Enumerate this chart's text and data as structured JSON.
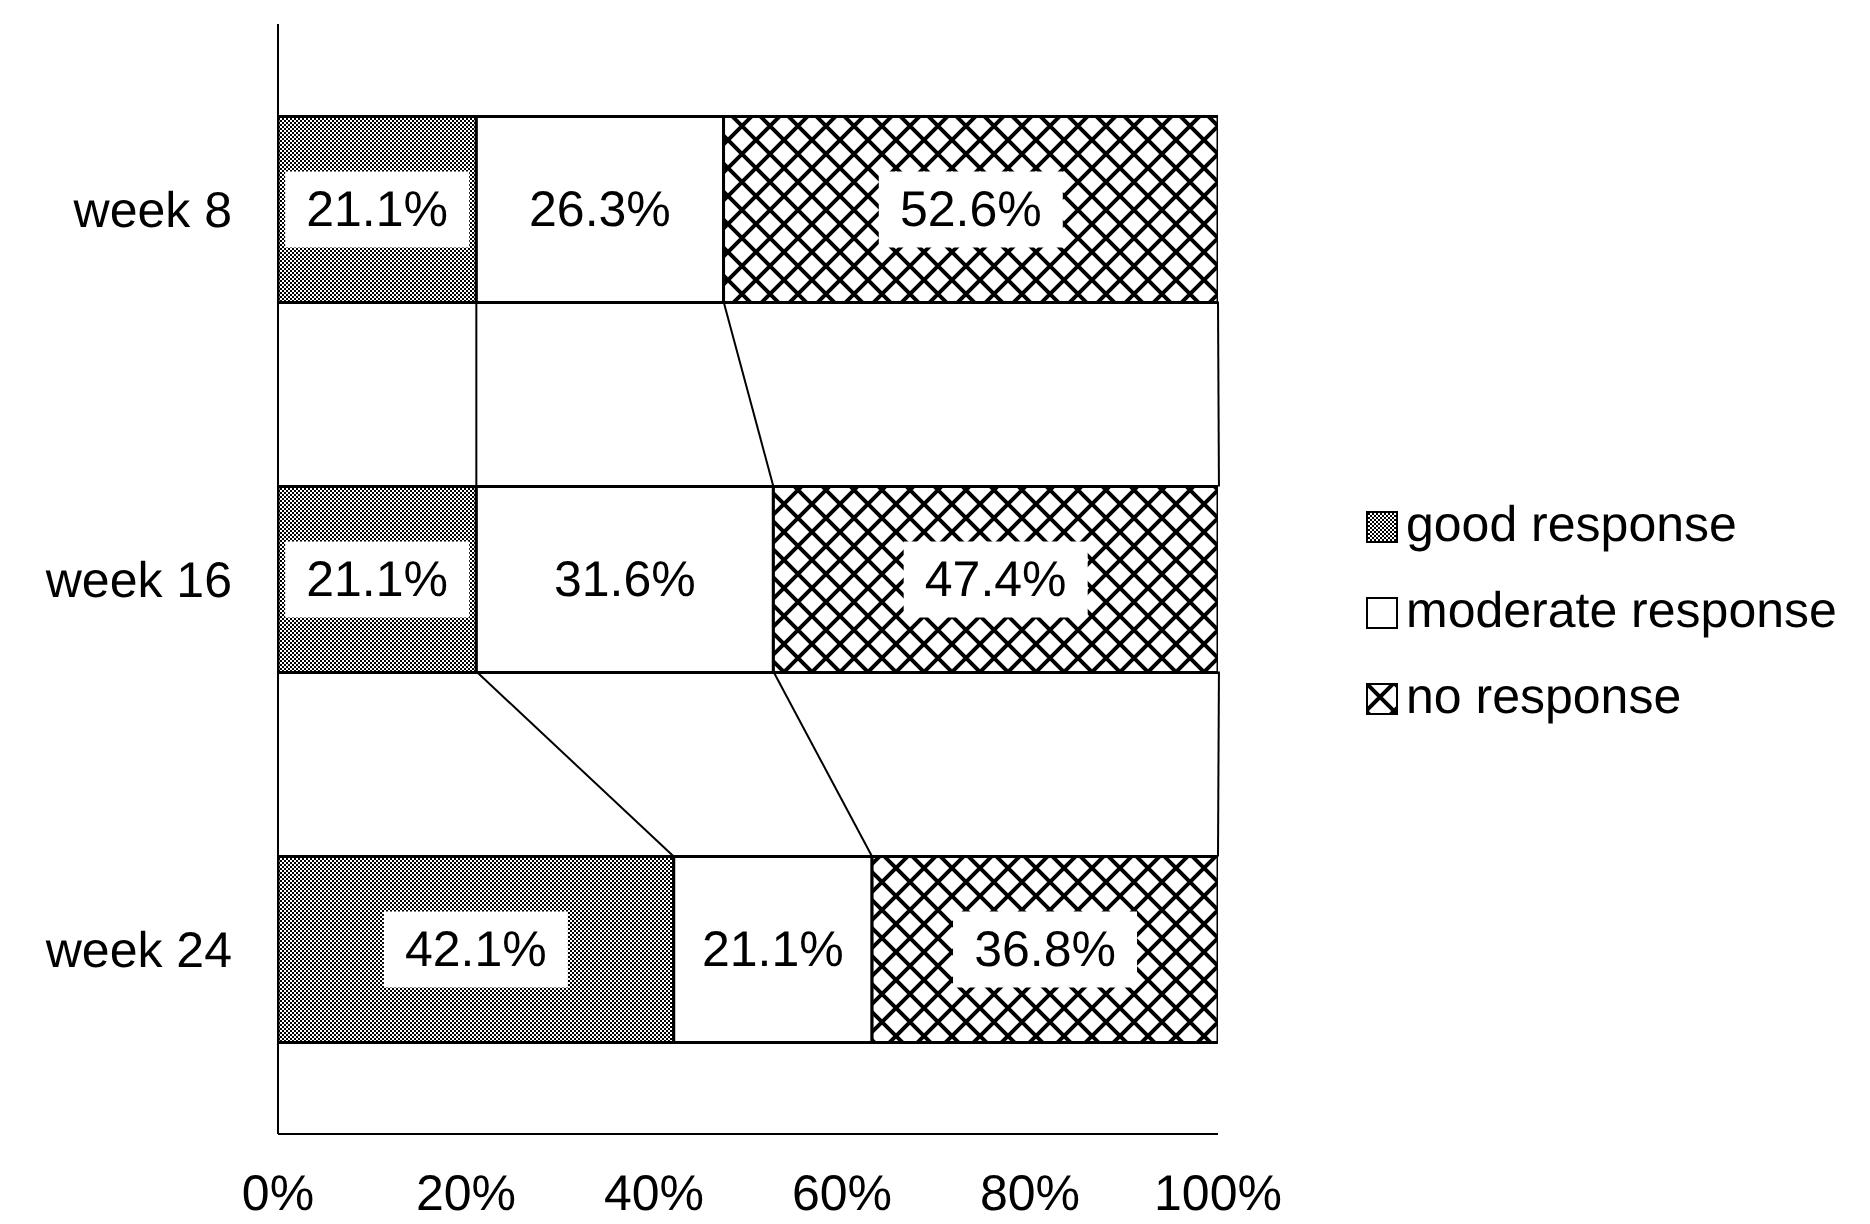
{
  "chart_data": {
    "type": "bar",
    "orientation": "horizontal",
    "stacked": true,
    "categories": [
      "week 8",
      "week 16",
      "week 24"
    ],
    "series": [
      {
        "name": "good response",
        "color": "#000000",
        "values": [
          21.1,
          21.1,
          42.1
        ],
        "value_labels": [
          "21.1%",
          "21.1%",
          "42.1%"
        ]
      },
      {
        "name": "moderate response",
        "color": "#ffffff",
        "values": [
          26.3,
          31.6,
          21.1
        ],
        "value_labels": [
          "26.3%",
          "31.6%",
          "21.1%"
        ]
      },
      {
        "name": "no response",
        "color": "#000000",
        "values": [
          52.6,
          47.4,
          36.8
        ],
        "value_labels": [
          "52.6%",
          "47.4%",
          "36.8%"
        ]
      }
    ],
    "xlim": [
      0,
      100
    ],
    "xticks": [
      {
        "value": 0,
        "label": "0%"
      },
      {
        "value": 20,
        "label": "20%"
      },
      {
        "value": 40,
        "label": "40%"
      },
      {
        "value": 60,
        "label": "60%"
      },
      {
        "value": 80,
        "label": "80%"
      },
      {
        "value": 100,
        "label": "100%"
      }
    ],
    "legend": "right"
  }
}
